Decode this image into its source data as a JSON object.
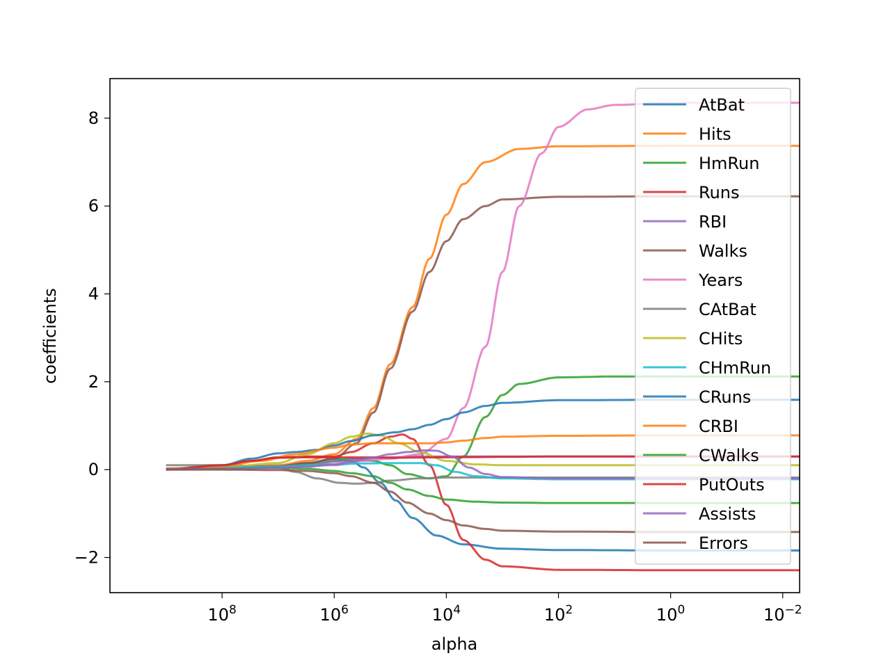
{
  "chart_data": {
    "type": "line",
    "title": "",
    "xlabel": "alpha",
    "ylabel": "coefficients",
    "x_scale": "log",
    "x_reversed": true,
    "xlim": [
      10000000000.0,
      0.005
    ],
    "ylim": [
      -2.8,
      8.9
    ],
    "x_ticks": [
      {
        "value": 100000000.0,
        "base": "10",
        "exp": "8"
      },
      {
        "value": 1000000.0,
        "base": "10",
        "exp": "6"
      },
      {
        "value": 10000.0,
        "base": "10",
        "exp": "4"
      },
      {
        "value": 100.0,
        "base": "10",
        "exp": "2"
      },
      {
        "value": 1,
        "base": "10",
        "exp": "0"
      },
      {
        "value": 0.01,
        "base": "10",
        "exp": "−2"
      }
    ],
    "y_ticks": [
      {
        "value": -2,
        "label": "−2"
      },
      {
        "value": 0,
        "label": "0"
      },
      {
        "value": 2,
        "label": "2"
      },
      {
        "value": 4,
        "label": "4"
      },
      {
        "value": 6,
        "label": "6"
      },
      {
        "value": 8,
        "label": "8"
      }
    ],
    "grid": false,
    "legend_position": "top-right",
    "series": [
      {
        "name": "AtBat",
        "color": "#1f77b4",
        "points": [
          [
            1000000000.0,
            0.02
          ],
          [
            100000000.0,
            0.05
          ],
          [
            10000000.0,
            0.08
          ],
          [
            3000000.0,
            0.15
          ],
          [
            1000000.0,
            0.25
          ],
          [
            500000.0,
            0.2
          ],
          [
            300000.0,
            0.05
          ],
          [
            150000.0,
            -0.3
          ],
          [
            80000.0,
            -0.7
          ],
          [
            40000.0,
            -1.1
          ],
          [
            15000.0,
            -1.5
          ],
          [
            5000.0,
            -1.7
          ],
          [
            1000.0,
            -1.8
          ],
          [
            100.0,
            -1.83
          ],
          [
            1,
            -1.84
          ],
          [
            0.003,
            -1.84
          ]
        ]
      },
      {
        "name": "Hits",
        "color": "#ff7f0e",
        "points": [
          [
            1000000000.0,
            0.03
          ],
          [
            100000000.0,
            0.06
          ],
          [
            10000000.0,
            0.1
          ],
          [
            3000000.0,
            0.2
          ],
          [
            1000000.0,
            0.35
          ],
          [
            400000.0,
            0.7
          ],
          [
            200000.0,
            1.4
          ],
          [
            100000.0,
            2.4
          ],
          [
            40000.0,
            3.7
          ],
          [
            20000.0,
            4.8
          ],
          [
            10000.0,
            5.8
          ],
          [
            5000.0,
            6.5
          ],
          [
            2000.0,
            7.0
          ],
          [
            500.0,
            7.3
          ],
          [
            100.0,
            7.36
          ],
          [
            1,
            7.37
          ],
          [
            0.003,
            7.37
          ]
        ]
      },
      {
        "name": "HmRun",
        "color": "#2ca02c",
        "points": [
          [
            1000000000.0,
            0.01
          ],
          [
            100000000.0,
            0.03
          ],
          [
            10000000.0,
            0.06
          ],
          [
            3000000.0,
            0.12
          ],
          [
            1000000.0,
            0.2
          ],
          [
            500000.0,
            0.25
          ],
          [
            200000.0,
            0.2
          ],
          [
            100000.0,
            0.1
          ],
          [
            50000.0,
            -0.1
          ],
          [
            20000.0,
            -0.2
          ],
          [
            10000.0,
            -0.15
          ],
          [
            5000.0,
            0.3
          ],
          [
            2000.0,
            1.2
          ],
          [
            1000.0,
            1.7
          ],
          [
            500.0,
            1.95
          ],
          [
            100.0,
            2.1
          ],
          [
            10.0,
            2.12
          ],
          [
            1,
            2.12
          ],
          [
            0.003,
            2.12
          ]
        ]
      },
      {
        "name": "Runs",
        "color": "#d62728",
        "points": [
          [
            1000000000.0,
            0.0
          ],
          [
            100000000.0,
            0.08
          ],
          [
            30000000.0,
            0.2
          ],
          [
            10000000.0,
            0.28
          ],
          [
            3000000.0,
            0.3
          ],
          [
            1000000.0,
            0.3
          ],
          [
            500000.0,
            0.4
          ],
          [
            200000.0,
            0.6
          ],
          [
            100000.0,
            0.75
          ],
          [
            60000.0,
            0.8
          ],
          [
            40000.0,
            0.7
          ],
          [
            20000.0,
            0.1
          ],
          [
            10000.0,
            -0.8
          ],
          [
            5000.0,
            -1.6
          ],
          [
            2000.0,
            -2.05
          ],
          [
            1000.0,
            -2.2
          ],
          [
            100.0,
            -2.28
          ],
          [
            1,
            -2.29
          ],
          [
            0.003,
            -2.29
          ]
        ]
      },
      {
        "name": "RBI",
        "color": "#9467bd",
        "points": [
          [
            1000000000.0,
            0.01
          ],
          [
            100000000.0,
            0.03
          ],
          [
            10000000.0,
            0.06
          ],
          [
            3000000.0,
            0.1
          ],
          [
            1000000.0,
            0.18
          ],
          [
            300000.0,
            0.25
          ],
          [
            100000.0,
            0.28
          ],
          [
            30000.0,
            0.3
          ],
          [
            10000.0,
            0.3
          ],
          [
            1000.0,
            0.3
          ],
          [
            100.0,
            0.3
          ],
          [
            1,
            0.3
          ],
          [
            0.003,
            0.3
          ]
        ]
      },
      {
        "name": "Walks",
        "color": "#8c564b",
        "points": [
          [
            1000000000.0,
            0.01
          ],
          [
            100000000.0,
            0.03
          ],
          [
            10000000.0,
            0.08
          ],
          [
            3000000.0,
            0.15
          ],
          [
            1000000.0,
            0.25
          ],
          [
            400000.0,
            0.6
          ],
          [
            200000.0,
            1.3
          ],
          [
            100000.0,
            2.3
          ],
          [
            40000.0,
            3.6
          ],
          [
            20000.0,
            4.5
          ],
          [
            10000.0,
            5.2
          ],
          [
            5000.0,
            5.7
          ],
          [
            2000.0,
            6.0
          ],
          [
            1000.0,
            6.15
          ],
          [
            100.0,
            6.21
          ],
          [
            1,
            6.22
          ],
          [
            0.003,
            6.22
          ]
        ]
      },
      {
        "name": "Years",
        "color": "#e377c2",
        "points": [
          [
            1000000000.0,
            0.01
          ],
          [
            100000000.0,
            0.02
          ],
          [
            10000000.0,
            0.05
          ],
          [
            1000000.0,
            0.1
          ],
          [
            300000.0,
            0.2
          ],
          [
            100000.0,
            0.25
          ],
          [
            30000.0,
            0.35
          ],
          [
            10000.0,
            0.7
          ],
          [
            5000.0,
            1.4
          ],
          [
            2000.0,
            2.8
          ],
          [
            1000.0,
            4.5
          ],
          [
            500.0,
            6.0
          ],
          [
            200.0,
            7.2
          ],
          [
            100.0,
            7.8
          ],
          [
            30.0,
            8.2
          ],
          [
            10.0,
            8.3
          ],
          [
            1,
            8.35
          ],
          [
            0.003,
            8.35
          ]
        ]
      },
      {
        "name": "CAtBat",
        "color": "#7f7f7f",
        "points": [
          [
            1000000000.0,
            0.1
          ],
          [
            100000000.0,
            0.1
          ],
          [
            20000000.0,
            0.08
          ],
          [
            10000000.0,
            0.05
          ],
          [
            5000000.0,
            -0.05
          ],
          [
            2000000.0,
            -0.2
          ],
          [
            800000.0,
            -0.3
          ],
          [
            400000.0,
            -0.32
          ],
          [
            200000.0,
            -0.3
          ],
          [
            100000.0,
            -0.25
          ],
          [
            30000.0,
            -0.2
          ],
          [
            10000.0,
            -0.18
          ],
          [
            1000.0,
            -0.18
          ],
          [
            100.0,
            -0.18
          ],
          [
            1,
            -0.18
          ],
          [
            0.003,
            -0.18
          ]
        ]
      },
      {
        "name": "CHits",
        "color": "#bcbd22",
        "points": [
          [
            1000000000.0,
            0.02
          ],
          [
            100000000.0,
            0.05
          ],
          [
            10000000.0,
            0.15
          ],
          [
            3000000.0,
            0.35
          ],
          [
            1000000.0,
            0.6
          ],
          [
            500000.0,
            0.75
          ],
          [
            250000.0,
            0.82
          ],
          [
            150000.0,
            0.78
          ],
          [
            70000.0,
            0.6
          ],
          [
            30000.0,
            0.4
          ],
          [
            10000.0,
            0.2
          ],
          [
            3000.0,
            0.12
          ],
          [
            1000.0,
            0.1
          ],
          [
            100.0,
            0.1
          ],
          [
            1,
            0.1
          ],
          [
            0.003,
            0.1
          ]
        ]
      },
      {
        "name": "CHmRun",
        "color": "#17becf",
        "points": [
          [
            1000000000.0,
            0.02
          ],
          [
            100000000.0,
            0.04
          ],
          [
            10000000.0,
            0.07
          ],
          [
            3000000.0,
            0.1
          ],
          [
            1000000.0,
            0.12
          ],
          [
            300000.0,
            0.14
          ],
          [
            100000.0,
            0.15
          ],
          [
            30000.0,
            0.15
          ],
          [
            15000.0,
            0.1
          ],
          [
            7000.0,
            -0.05
          ],
          [
            3000.0,
            -0.15
          ],
          [
            1000.0,
            -0.2
          ],
          [
            100.0,
            -0.22
          ],
          [
            1,
            -0.22
          ],
          [
            0.003,
            -0.22
          ]
        ]
      },
      {
        "name": "CRuns",
        "color": "#1f77b4",
        "points": [
          [
            1000000000.0,
            0.02
          ],
          [
            100000000.0,
            0.1
          ],
          [
            30000000.0,
            0.25
          ],
          [
            10000000.0,
            0.37
          ],
          [
            5000000.0,
            0.4
          ],
          [
            2000000.0,
            0.45
          ],
          [
            1000000.0,
            0.55
          ],
          [
            500000.0,
            0.65
          ],
          [
            200000.0,
            0.78
          ],
          [
            80000.0,
            0.85
          ],
          [
            40000.0,
            0.92
          ],
          [
            20000.0,
            1.02
          ],
          [
            10000.0,
            1.15
          ],
          [
            5000.0,
            1.3
          ],
          [
            2000.0,
            1.45
          ],
          [
            1000.0,
            1.52
          ],
          [
            100.0,
            1.58
          ],
          [
            1,
            1.59
          ],
          [
            0.003,
            1.59
          ]
        ]
      },
      {
        "name": "CRBI",
        "color": "#ff7f0e",
        "points": [
          [
            1000000000.0,
            0.02
          ],
          [
            100000000.0,
            0.08
          ],
          [
            20000000.0,
            0.2
          ],
          [
            5000000.0,
            0.35
          ],
          [
            1000000.0,
            0.5
          ],
          [
            500000.0,
            0.57
          ],
          [
            200000.0,
            0.6
          ],
          [
            100000.0,
            0.6
          ],
          [
            50000.0,
            0.6
          ],
          [
            20000.0,
            0.6
          ],
          [
            10000.0,
            0.62
          ],
          [
            5000.0,
            0.66
          ],
          [
            2000.0,
            0.72
          ],
          [
            1000.0,
            0.75
          ],
          [
            100.0,
            0.77
          ],
          [
            1,
            0.78
          ],
          [
            0.003,
            0.78
          ]
        ]
      },
      {
        "name": "CWalks",
        "color": "#2ca02c",
        "points": [
          [
            1000000000.0,
            0.01
          ],
          [
            100000000.0,
            0.02
          ],
          [
            10000000.0,
            0.04
          ],
          [
            3000000.0,
            0.02
          ],
          [
            1000000.0,
            -0.03
          ],
          [
            500000.0,
            -0.08
          ],
          [
            200000.0,
            -0.15
          ],
          [
            100000.0,
            -0.3
          ],
          [
            50000.0,
            -0.45
          ],
          [
            20000.0,
            -0.6
          ],
          [
            10000.0,
            -0.68
          ],
          [
            3000.0,
            -0.73
          ],
          [
            1000.0,
            -0.75
          ],
          [
            100.0,
            -0.76
          ],
          [
            1,
            -0.76
          ],
          [
            0.003,
            -0.76
          ]
        ]
      },
      {
        "name": "PutOuts",
        "color": "#d62728",
        "points": [
          [
            1000000000.0,
            0.0
          ],
          [
            100000000.0,
            0.1
          ],
          [
            30000000.0,
            0.2
          ],
          [
            10000000.0,
            0.27
          ],
          [
            3000000.0,
            0.28
          ],
          [
            1000000.0,
            0.28
          ],
          [
            500000.0,
            0.28
          ],
          [
            200000.0,
            0.28
          ],
          [
            100000.0,
            0.27
          ],
          [
            10000.0,
            0.28
          ],
          [
            1000.0,
            0.29
          ],
          [
            100.0,
            0.3
          ],
          [
            1,
            0.3
          ],
          [
            0.003,
            0.3
          ]
        ]
      },
      {
        "name": "Assists",
        "color": "#9467bd",
        "points": [
          [
            1000000000.0,
            0.01
          ],
          [
            100000000.0,
            0.02
          ],
          [
            10000000.0,
            0.04
          ],
          [
            3000000.0,
            0.07
          ],
          [
            1000000.0,
            0.12
          ],
          [
            500000.0,
            0.18
          ],
          [
            200000.0,
            0.28
          ],
          [
            100000.0,
            0.35
          ],
          [
            50000.0,
            0.4
          ],
          [
            25000.0,
            0.44
          ],
          [
            15000.0,
            0.43
          ],
          [
            8000.0,
            0.3
          ],
          [
            4000.0,
            0.05
          ],
          [
            2000.0,
            -0.1
          ],
          [
            1000.0,
            -0.17
          ],
          [
            100.0,
            -0.2
          ],
          [
            1,
            -0.2
          ],
          [
            0.003,
            -0.2
          ]
        ]
      },
      {
        "name": "Errors",
        "color": "#8c564b",
        "points": [
          [
            1000000000.0,
            0.0
          ],
          [
            100000000.0,
            0.0
          ],
          [
            10000000.0,
            -0.01
          ],
          [
            3000000.0,
            -0.03
          ],
          [
            1000000.0,
            -0.08
          ],
          [
            500000.0,
            -0.15
          ],
          [
            200000.0,
            -0.3
          ],
          [
            100000.0,
            -0.5
          ],
          [
            50000.0,
            -0.75
          ],
          [
            20000.0,
            -1.0
          ],
          [
            10000.0,
            -1.15
          ],
          [
            5000.0,
            -1.27
          ],
          [
            2000.0,
            -1.35
          ],
          [
            1000.0,
            -1.39
          ],
          [
            100.0,
            -1.41
          ],
          [
            1,
            -1.42
          ],
          [
            0.003,
            -1.42
          ]
        ]
      }
    ]
  }
}
